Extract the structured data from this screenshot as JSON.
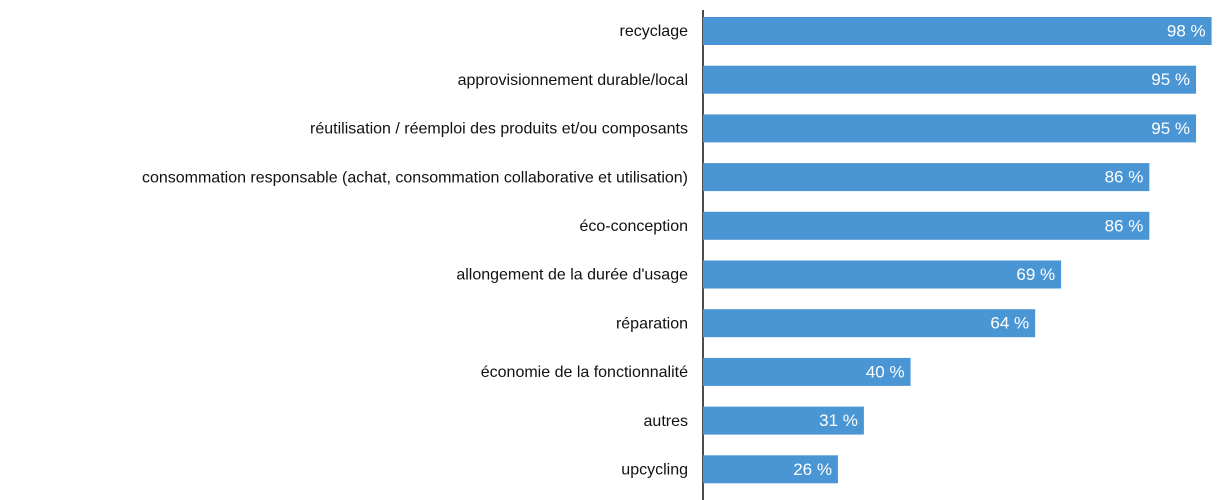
{
  "chart_data": {
    "type": "barh",
    "categories": [
      "recyclage",
      "approvisionnement durable/local",
      "réutilisation / réemploi des produits et/ou composants",
      "consommation responsable (achat, consommation collaborative et utilisation)",
      "éco-conception",
      "allongement de la durée d'usage",
      "réparation",
      "économie de la fonctionnalité",
      "autres",
      "upcycling"
    ],
    "values": [
      98,
      95,
      95,
      86,
      86,
      69,
      64,
      40,
      31,
      26
    ],
    "value_labels": [
      "98 %",
      "95 %",
      "95 %",
      "86 %",
      "86 %",
      "69 %",
      "64 %",
      "40 %",
      "31 %",
      "26 %"
    ],
    "color": "#4a96d4",
    "xlim": [
      0,
      100
    ]
  }
}
